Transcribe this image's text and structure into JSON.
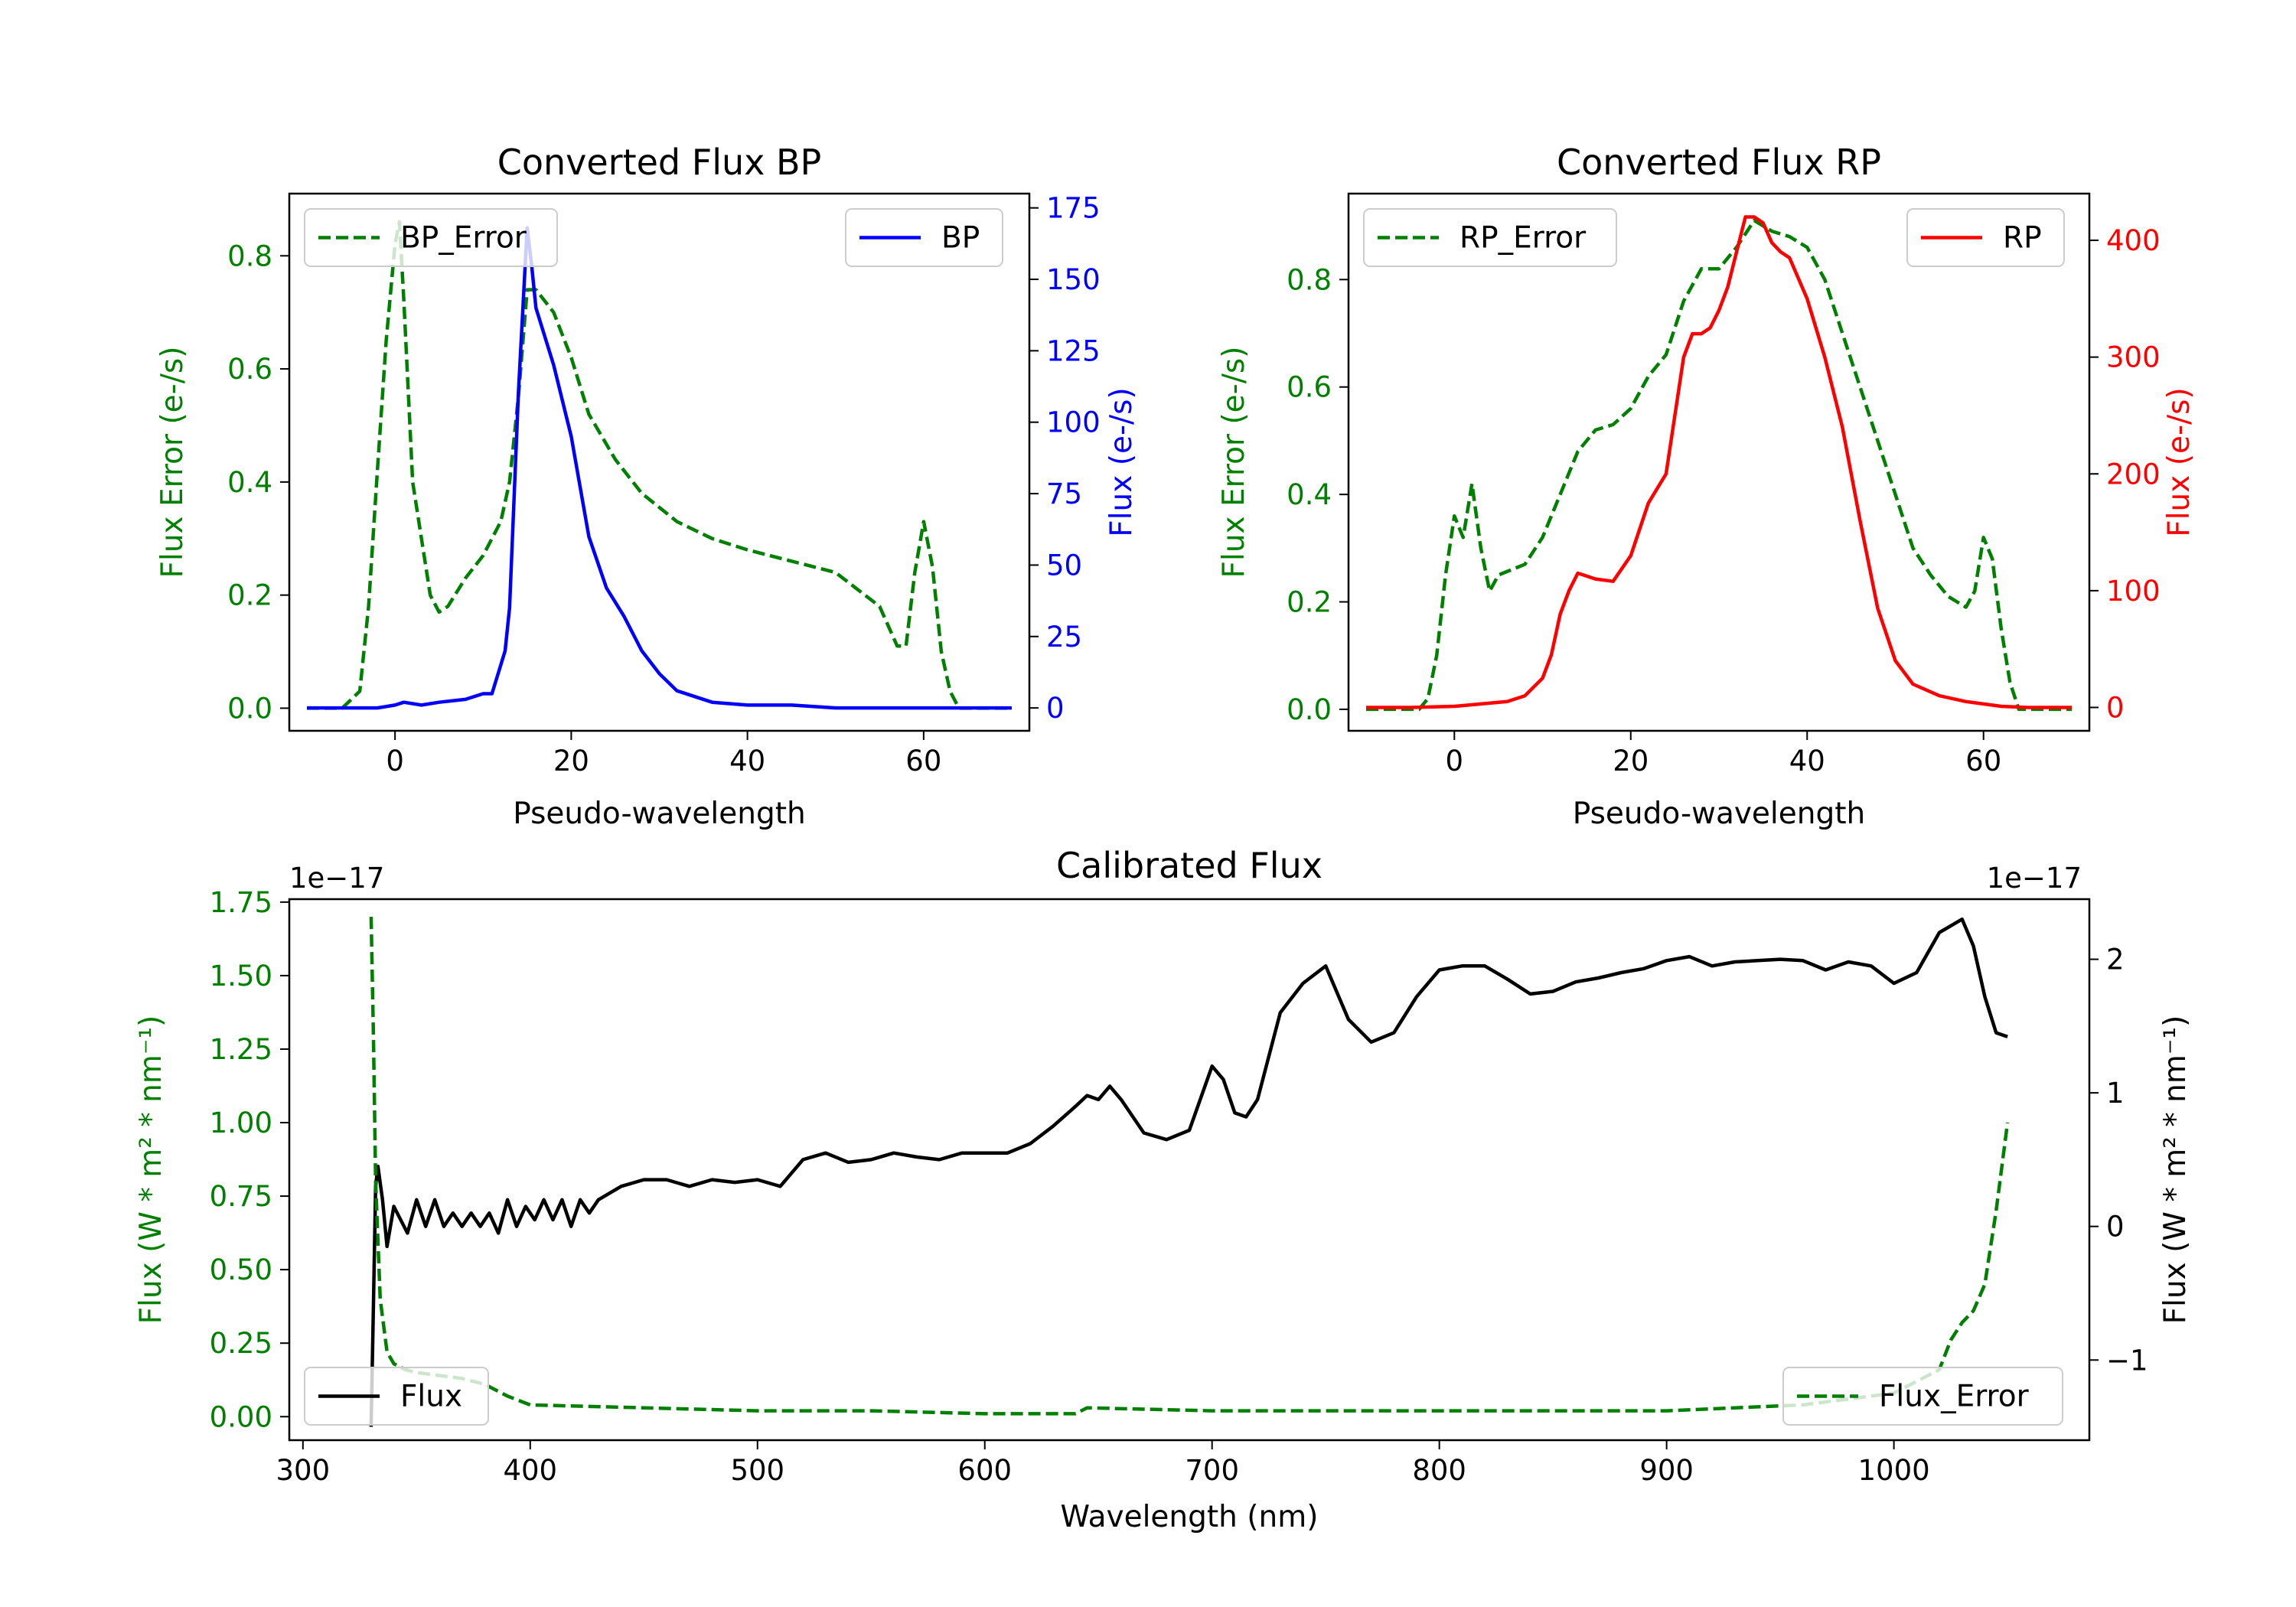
{
  "chart_data": [
    {
      "type": "line",
      "title": "Converted Flux BP",
      "xlabel": "Pseudo-wavelength",
      "xlim": [
        -12,
        72
      ],
      "xticks": [
        0,
        20,
        40,
        60
      ],
      "axes": {
        "left": {
          "label": "Flux Error (e-/s)",
          "color": "#008000",
          "ylim": [
            -0.04,
            0.91
          ],
          "ticks": [
            0.0,
            0.2,
            0.4,
            0.6,
            0.8
          ],
          "tick_labels": [
            "0.0",
            "0.2",
            "0.4",
            "0.6",
            "0.8"
          ]
        },
        "right": {
          "label": "Flux (e-/s)",
          "color": "#0000ff",
          "ylim": [
            -8,
            180
          ],
          "ticks": [
            0,
            25,
            50,
            75,
            100,
            125,
            150,
            175
          ],
          "tick_labels": [
            "0",
            "25",
            "50",
            "75",
            "100",
            "125",
            "150",
            "175"
          ]
        }
      },
      "series": [
        {
          "name": "BP_Error",
          "axis": "left",
          "color": "#008000",
          "style": "dashed",
          "x": [
            -10,
            -6,
            -4,
            -3,
            -2,
            -1,
            0,
            0.5,
            1,
            2,
            3,
            4,
            5,
            6,
            8,
            10,
            12,
            13,
            14,
            15,
            16,
            18,
            20,
            22,
            25,
            28,
            32,
            36,
            40,
            45,
            50,
            55,
            57,
            58,
            59,
            60,
            61,
            62,
            63,
            64,
            66,
            70
          ],
          "y": [
            0.0,
            0.0,
            0.03,
            0.18,
            0.42,
            0.65,
            0.82,
            0.86,
            0.72,
            0.4,
            0.3,
            0.2,
            0.17,
            0.18,
            0.23,
            0.27,
            0.33,
            0.4,
            0.55,
            0.74,
            0.74,
            0.7,
            0.62,
            0.52,
            0.44,
            0.38,
            0.33,
            0.3,
            0.28,
            0.26,
            0.24,
            0.18,
            0.11,
            0.11,
            0.24,
            0.33,
            0.25,
            0.1,
            0.03,
            0.0,
            0.0,
            0.0
          ]
        },
        {
          "name": "BP",
          "axis": "right",
          "color": "#0000ff",
          "style": "solid",
          "x": [
            -10,
            -5,
            -2,
            0,
            1,
            3,
            5,
            8,
            10,
            11,
            12,
            12.5,
            13,
            14,
            15,
            15.5,
            16,
            18,
            20,
            22,
            24,
            26,
            28,
            30,
            32,
            34,
            36,
            40,
            45,
            50,
            55,
            60,
            65,
            70
          ],
          "y": [
            0,
            0,
            0,
            1,
            2,
            1,
            2,
            3,
            5,
            5,
            15,
            20,
            35,
            110,
            168,
            155,
            140,
            120,
            95,
            60,
            42,
            32,
            20,
            12,
            6,
            4,
            2,
            1,
            1,
            0,
            0,
            0,
            0,
            0
          ]
        }
      ],
      "legend": [
        {
          "label": "BP_Error",
          "position": "upper-left"
        },
        {
          "label": "BP",
          "position": "upper-right"
        }
      ]
    },
    {
      "type": "line",
      "title": "Converted Flux RP",
      "xlabel": "Pseudo-wavelength",
      "xlim": [
        -12,
        72
      ],
      "xticks": [
        0,
        20,
        40,
        60
      ],
      "axes": {
        "left": {
          "label": "Flux Error (e-/s)",
          "color": "#008000",
          "ylim": [
            -0.04,
            0.96
          ],
          "ticks": [
            0.0,
            0.2,
            0.4,
            0.6,
            0.8
          ],
          "tick_labels": [
            "0.0",
            "0.2",
            "0.4",
            "0.6",
            "0.8"
          ]
        },
        "right": {
          "label": "Flux (e-/s)",
          "color": "#ff0000",
          "ylim": [
            -20,
            440
          ],
          "ticks": [
            0,
            100,
            200,
            300,
            400
          ],
          "tick_labels": [
            "0",
            "100",
            "200",
            "300",
            "400"
          ]
        }
      },
      "series": [
        {
          "name": "RP_Error",
          "axis": "left",
          "color": "#008000",
          "style": "dashed",
          "x": [
            -10,
            -4,
            -3,
            -2,
            -1,
            0,
            1,
            2,
            3,
            4,
            5,
            8,
            10,
            12,
            14,
            16,
            18,
            20,
            22,
            24,
            26,
            28,
            30,
            32,
            34,
            36,
            38,
            40,
            42,
            44,
            46,
            48,
            50,
            52,
            54,
            56,
            57,
            58,
            59,
            60,
            61,
            62,
            63,
            64,
            70
          ],
          "y": [
            0.0,
            0.0,
            0.02,
            0.1,
            0.25,
            0.36,
            0.32,
            0.42,
            0.3,
            0.22,
            0.25,
            0.27,
            0.32,
            0.4,
            0.48,
            0.52,
            0.53,
            0.56,
            0.62,
            0.66,
            0.76,
            0.82,
            0.82,
            0.86,
            0.91,
            0.89,
            0.88,
            0.86,
            0.8,
            0.7,
            0.6,
            0.5,
            0.4,
            0.3,
            0.25,
            0.21,
            0.2,
            0.19,
            0.22,
            0.32,
            0.28,
            0.15,
            0.05,
            0.0,
            0.0
          ]
        },
        {
          "name": "RP",
          "axis": "right",
          "color": "#ff0000",
          "style": "solid",
          "x": [
            -10,
            -5,
            0,
            3,
            6,
            8,
            10,
            11,
            12,
            13,
            14,
            16,
            18,
            20,
            22,
            24,
            26,
            27,
            28,
            29,
            30,
            31,
            32,
            33,
            34,
            35,
            36,
            37,
            38,
            40,
            42,
            44,
            46,
            48,
            50,
            52,
            55,
            58,
            60,
            62,
            65,
            70
          ],
          "y": [
            0,
            0,
            1,
            3,
            5,
            10,
            25,
            45,
            80,
            100,
            115,
            110,
            108,
            130,
            175,
            200,
            300,
            320,
            320,
            325,
            340,
            360,
            390,
            420,
            420,
            415,
            398,
            390,
            385,
            350,
            300,
            240,
            160,
            85,
            40,
            20,
            10,
            5,
            3,
            1,
            0,
            0
          ]
        }
      ],
      "legend": [
        {
          "label": "RP_Error",
          "position": "upper-left"
        },
        {
          "label": "RP",
          "position": "upper-right"
        }
      ]
    },
    {
      "type": "line",
      "title": "Calibrated Flux",
      "xlabel": "Wavelength (nm)",
      "xlim": [
        294,
        1086
      ],
      "xticks": [
        300,
        400,
        500,
        600,
        700,
        800,
        900,
        1000
      ],
      "axes": {
        "left": {
          "label": "Flux (W * m² * nm⁻¹)",
          "color": "#008000",
          "exponent_label": "1e−17",
          "ylim": [
            -0.08,
            1.76
          ],
          "ticks": [
            0.0,
            0.25,
            0.5,
            0.75,
            1.0,
            1.25,
            1.5,
            1.75
          ],
          "tick_labels": [
            "0.00",
            "0.25",
            "0.50",
            "0.75",
            "1.00",
            "1.25",
            "1.50",
            "1.75"
          ]
        },
        "right": {
          "label": "Flux (W * m² * nm⁻¹)",
          "color": "#000000",
          "exponent_label": "1e−17",
          "ylim": [
            -1.6,
            2.45
          ],
          "ticks": [
            -1,
            0,
            1,
            2
          ],
          "tick_labels": [
            "−1",
            "0",
            "1",
            "2"
          ]
        }
      },
      "series": [
        {
          "name": "Flux",
          "axis": "right",
          "color": "#000000",
          "style": "solid",
          "x": [
            330,
            331,
            332,
            333,
            335,
            337,
            340,
            343,
            346,
            350,
            354,
            358,
            362,
            366,
            370,
            374,
            378,
            382,
            386,
            390,
            394,
            398,
            402,
            406,
            410,
            414,
            418,
            422,
            426,
            430,
            440,
            450,
            460,
            470,
            480,
            490,
            500,
            510,
            520,
            530,
            540,
            550,
            560,
            570,
            580,
            590,
            600,
            610,
            620,
            630,
            640,
            645,
            650,
            655,
            660,
            670,
            680,
            690,
            700,
            705,
            710,
            715,
            720,
            730,
            740,
            750,
            760,
            770,
            780,
            790,
            800,
            810,
            820,
            830,
            840,
            850,
            860,
            870,
            880,
            890,
            900,
            910,
            920,
            930,
            940,
            950,
            960,
            970,
            980,
            990,
            1000,
            1010,
            1020,
            1030,
            1035,
            1040,
            1045,
            1050
          ],
          "y": [
            -1.5,
            -0.6,
            0.3,
            0.45,
            0.2,
            -0.15,
            0.15,
            0.05,
            -0.05,
            0.2,
            0.0,
            0.2,
            0.0,
            0.1,
            0.0,
            0.1,
            0.0,
            0.1,
            -0.05,
            0.2,
            0.0,
            0.15,
            0.05,
            0.2,
            0.05,
            0.2,
            0.0,
            0.2,
            0.1,
            0.2,
            0.3,
            0.35,
            0.35,
            0.3,
            0.35,
            0.33,
            0.35,
            0.3,
            0.5,
            0.55,
            0.48,
            0.5,
            0.55,
            0.52,
            0.5,
            0.55,
            0.55,
            0.55,
            0.62,
            0.75,
            0.9,
            0.98,
            0.95,
            1.05,
            0.95,
            0.7,
            0.65,
            0.72,
            1.2,
            1.1,
            0.85,
            0.82,
            0.95,
            1.6,
            1.82,
            1.95,
            1.55,
            1.38,
            1.45,
            1.72,
            1.92,
            1.95,
            1.95,
            1.85,
            1.74,
            1.76,
            1.83,
            1.86,
            1.9,
            1.93,
            1.99,
            2.02,
            1.95,
            1.98,
            1.99,
            2.0,
            1.99,
            1.92,
            1.98,
            1.95,
            1.82,
            1.9,
            2.2,
            2.3,
            2.1,
            1.72,
            1.45,
            1.42
          ]
        },
        {
          "name": "Flux_Error",
          "axis": "left",
          "color": "#008000",
          "style": "dashed",
          "x": [
            330,
            331,
            332,
            334,
            337,
            340,
            345,
            350,
            360,
            370,
            380,
            390,
            400,
            450,
            500,
            550,
            600,
            640,
            645,
            700,
            800,
            900,
            960,
            980,
            1000,
            1010,
            1020,
            1025,
            1030,
            1035,
            1040,
            1045,
            1050
          ],
          "y": [
            1.7,
            1.3,
            0.8,
            0.4,
            0.22,
            0.18,
            0.16,
            0.15,
            0.14,
            0.13,
            0.11,
            0.07,
            0.04,
            0.03,
            0.02,
            0.02,
            0.01,
            0.01,
            0.03,
            0.02,
            0.02,
            0.02,
            0.04,
            0.06,
            0.08,
            0.12,
            0.16,
            0.26,
            0.32,
            0.36,
            0.45,
            0.7,
            1.0
          ]
        }
      ],
      "legend": [
        {
          "label": "Flux",
          "position": "lower-left"
        },
        {
          "label": "Flux_Error",
          "position": "lower-right"
        }
      ]
    }
  ]
}
